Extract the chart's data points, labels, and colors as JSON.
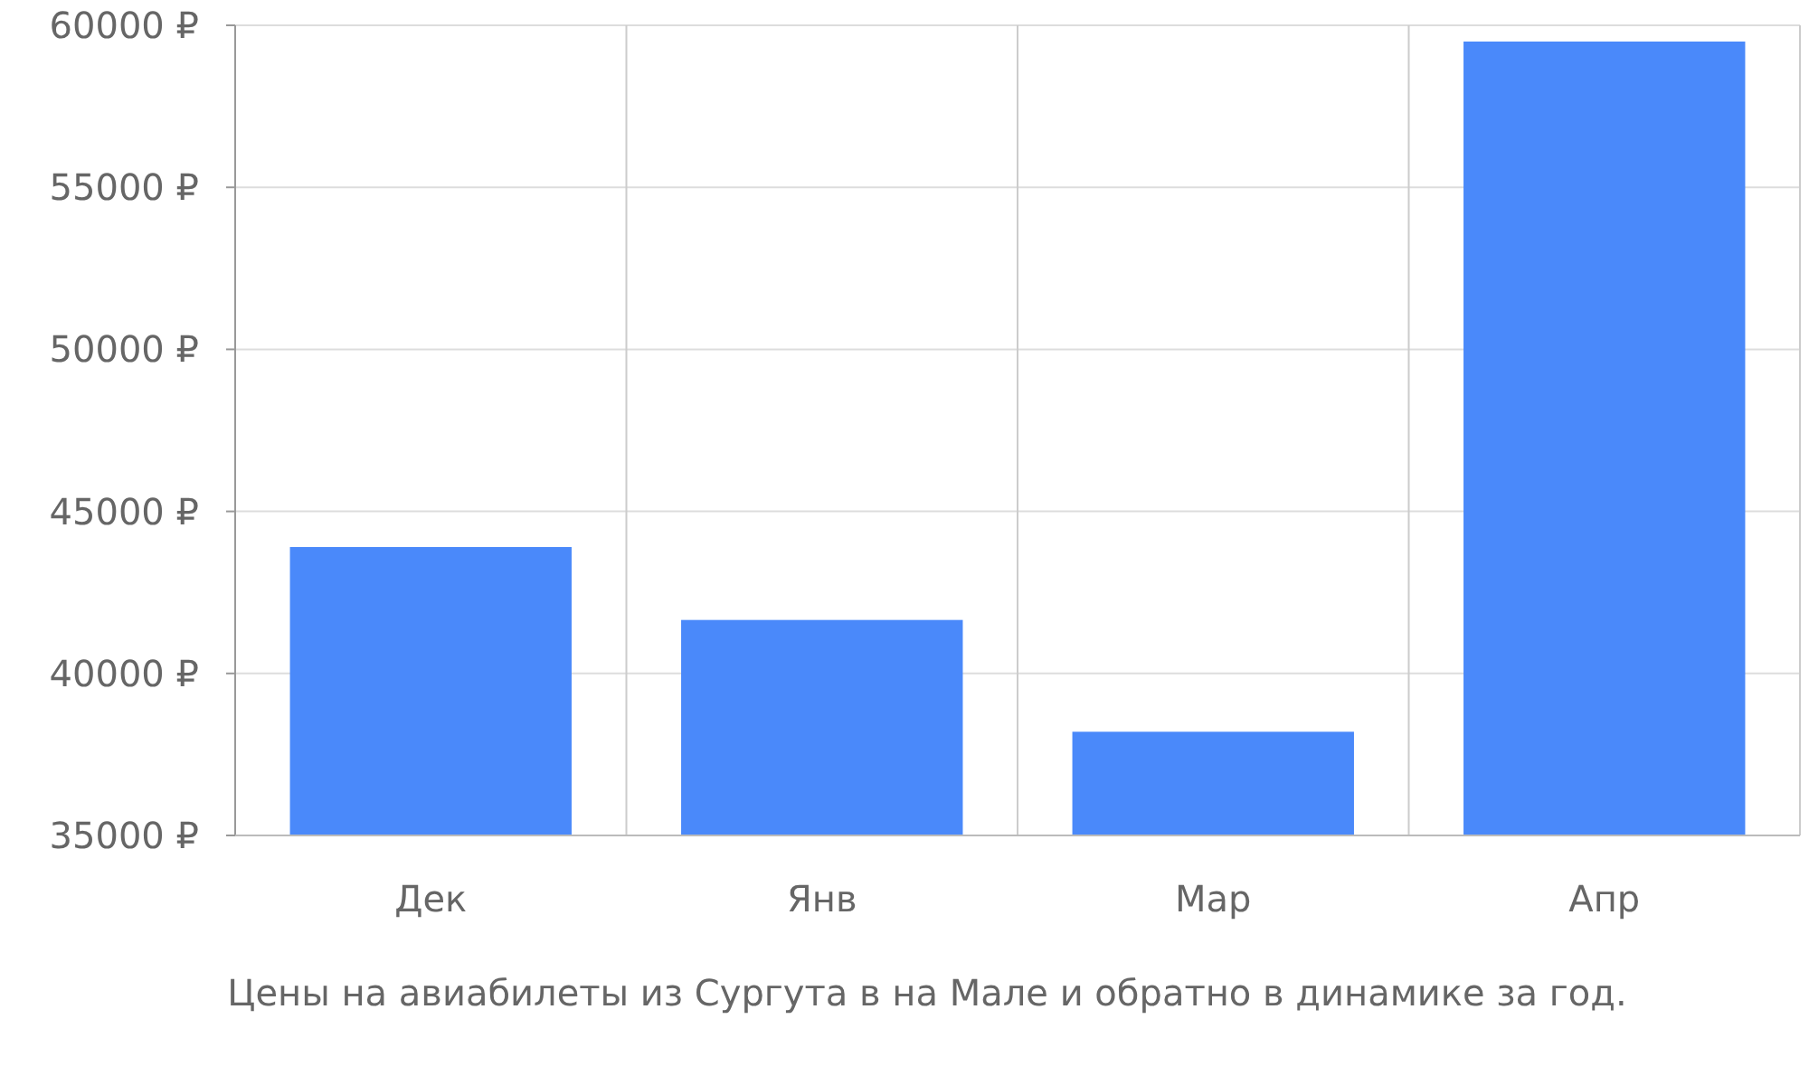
{
  "chart_data": {
    "type": "bar",
    "categories": [
      "Дек",
      "Янв",
      "Мар",
      "Апр"
    ],
    "values": [
      43900,
      41650,
      38200,
      59500
    ],
    "color": "#4a89fa",
    "ylim": [
      35000,
      60000
    ],
    "yticks": [
      {
        "value": 35000,
        "label": "35000 ₽"
      },
      {
        "value": 40000,
        "label": "40000 ₽"
      },
      {
        "value": 45000,
        "label": "45000 ₽"
      },
      {
        "value": 50000,
        "label": "50000 ₽"
      },
      {
        "value": 55000,
        "label": "55000 ₽"
      },
      {
        "value": 60000,
        "label": "60000 ₽"
      }
    ],
    "grid": true,
    "xlabel": "Цены на авиабилеты из Сургута в на Мале и обратно в динамике за год."
  }
}
